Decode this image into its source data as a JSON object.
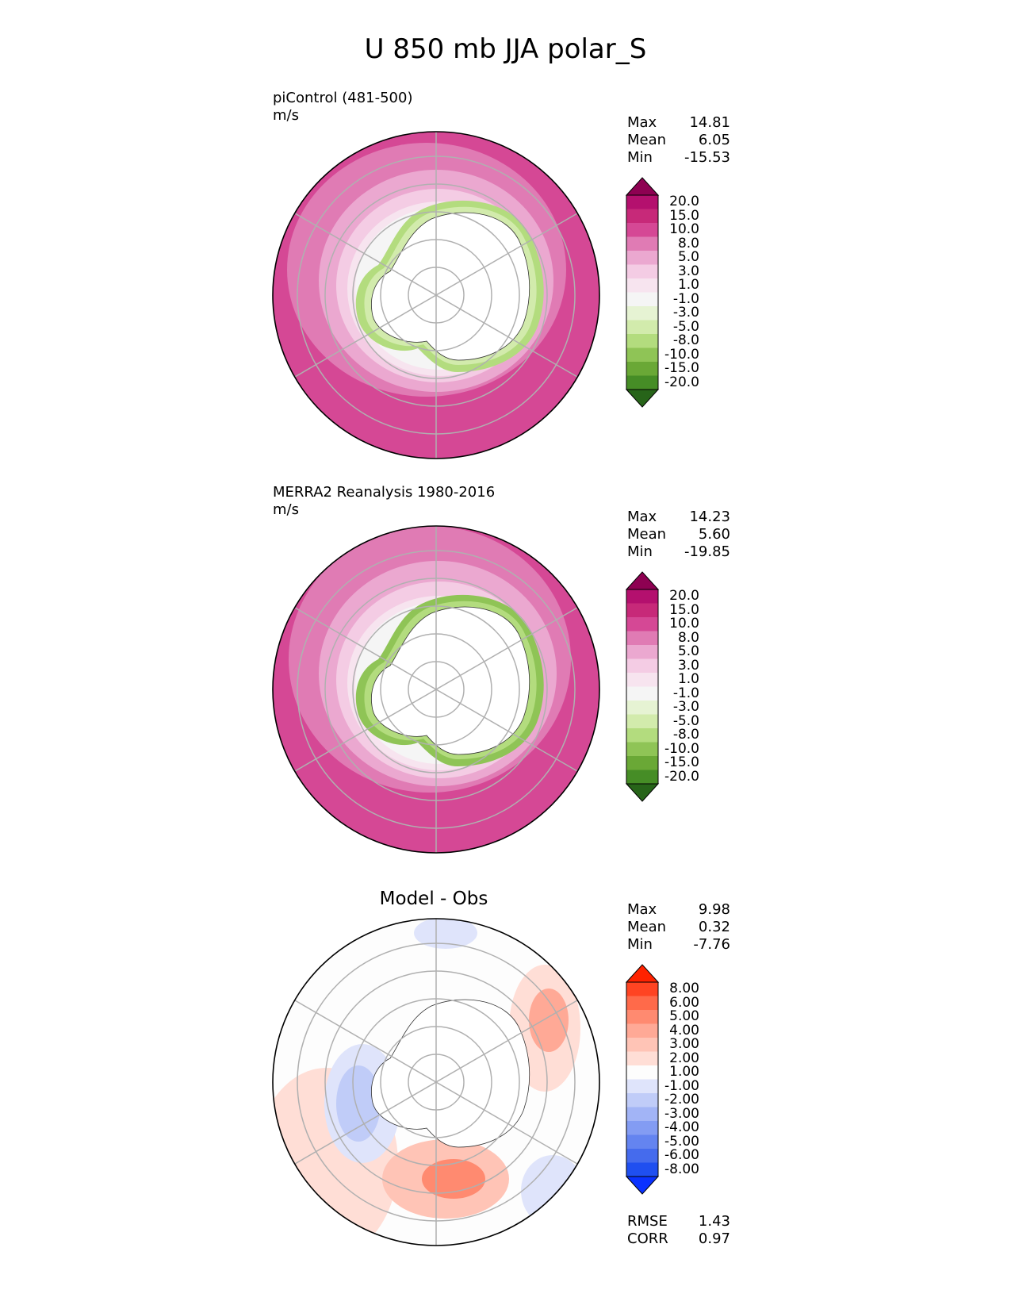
{
  "title": "U 850 mb JJA polar_S",
  "panels": [
    {
      "id": "test",
      "label_line1": "piControl (481-500)",
      "label_line2": "m/s",
      "stats": [
        {
          "name": "Max",
          "value": "14.81"
        },
        {
          "name": "Mean",
          "value": "6.05"
        },
        {
          "name": "Min",
          "value": "-15.53"
        }
      ]
    },
    {
      "id": "ref",
      "label_line1": "MERRA2 Reanalysis 1980-2016",
      "label_line2": "m/s",
      "stats": [
        {
          "name": "Max",
          "value": "14.23"
        },
        {
          "name": "Mean",
          "value": "5.60"
        },
        {
          "name": "Min",
          "value": "-19.85"
        }
      ]
    },
    {
      "id": "diff",
      "subtitle": "Model - Obs",
      "stats": [
        {
          "name": "Max",
          "value": "9.98"
        },
        {
          "name": "Mean",
          "value": "0.32"
        },
        {
          "name": "Min",
          "value": "-7.76"
        }
      ],
      "metrics": [
        {
          "name": "RMSE",
          "value": "1.43"
        },
        {
          "name": "CORR",
          "value": "0.97"
        }
      ]
    }
  ],
  "colorbar_field": {
    "labels": [
      "20.0",
      "15.0",
      "10.0",
      "8.0",
      "5.0",
      "3.0",
      "1.0",
      "-1.0",
      "-3.0",
      "-5.0",
      "-8.0",
      "-10.0",
      "-15.0",
      "-20.0"
    ],
    "colors": [
      "#8e0152",
      "#b4106e",
      "#c72979",
      "#d54895",
      "#e07bb4",
      "#eba8d0",
      "#f4cce4",
      "#f7e4ef",
      "#f5f5f5",
      "#e6f3d3",
      "#d2ebac",
      "#b3dc7e",
      "#8fc456",
      "#6aa836",
      "#468d26",
      "#276419"
    ]
  },
  "colorbar_diff": {
    "labels": [
      "8.00",
      "6.00",
      "5.00",
      "4.00",
      "3.00",
      "2.00",
      "1.00",
      "-1.00",
      "-2.00",
      "-3.00",
      "-4.00",
      "-5.00",
      "-6.00",
      "-8.00"
    ],
    "colors": [
      "#ff2200",
      "#ff4422",
      "#ff6a4a",
      "#ff8a70",
      "#ffa996",
      "#ffc4b6",
      "#ffded6",
      "#fdfdfd",
      "#dfe4fb",
      "#c0ccf8",
      "#a2b4f6",
      "#839cf3",
      "#6484f0",
      "#456bed",
      "#1f4ff0",
      "#0a32ff"
    ]
  }
}
